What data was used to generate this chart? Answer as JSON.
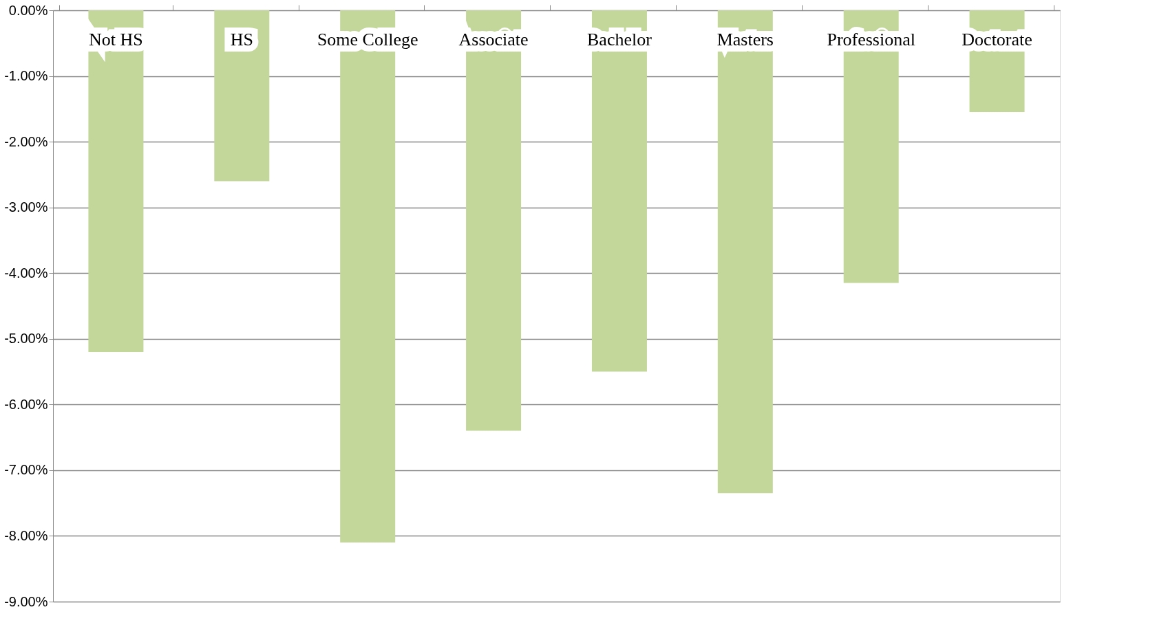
{
  "chart_data": {
    "type": "bar",
    "categories": [
      "Not HS",
      "HS",
      "Some College",
      "Associate",
      "Bachelor",
      "Masters",
      "Professional",
      "Doctorate"
    ],
    "values": [
      -5.2,
      -2.6,
      -8.1,
      -6.4,
      -5.5,
      -7.35,
      -4.15,
      -1.55
    ],
    "color": "#c4d79b",
    "ylim": [
      -9,
      0
    ],
    "yticks": [
      {
        "value": 0,
        "label": "0.00%"
      },
      {
        "value": -1,
        "label": "-1.00%"
      },
      {
        "value": -2,
        "label": "-2.00%"
      },
      {
        "value": -3,
        "label": "-3.00%"
      },
      {
        "value": -4,
        "label": "-4.00%"
      },
      {
        "value": -5,
        "label": "-5.00%"
      },
      {
        "value": -6,
        "label": "-6.00%"
      },
      {
        "value": -7,
        "label": "-7.00%"
      },
      {
        "value": -8,
        "label": "-8.00%"
      },
      {
        "value": -9,
        "label": "-9.00%"
      }
    ],
    "grid": "y"
  }
}
